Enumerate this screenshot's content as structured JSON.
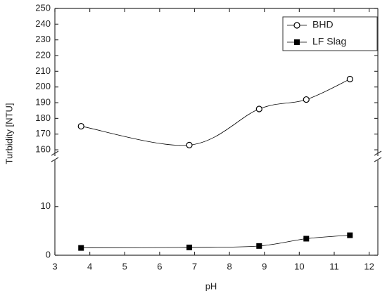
{
  "chart_data": {
    "type": "line",
    "x_label": "pH",
    "y_label": "Turbidity [NTU]",
    "xlim": [
      3,
      12.25
    ],
    "xticks": [
      3,
      4,
      5,
      6,
      7,
      8,
      9,
      10,
      11,
      12
    ],
    "ylim": [
      [
        0,
        19.5
      ],
      [
        156,
        250
      ]
    ],
    "yticks": [
      [
        0,
        10
      ],
      [
        160,
        170,
        180,
        190,
        200,
        210,
        220,
        230,
        240,
        250
      ]
    ],
    "x": [
      3.75,
      6.85,
      8.85,
      10.2,
      11.45
    ],
    "series": [
      {
        "name": "BHD",
        "color": "#000000",
        "marker": "open-circle",
        "panel": 1,
        "values": [
          175,
          163,
          186,
          192,
          205
        ]
      },
      {
        "name": "LF Slag",
        "color": "#000000",
        "marker": "filled-square",
        "panel": 0,
        "values": [
          1.5,
          1.6,
          1.9,
          3.4,
          4.1
        ]
      }
    ],
    "legend": "upper right"
  }
}
